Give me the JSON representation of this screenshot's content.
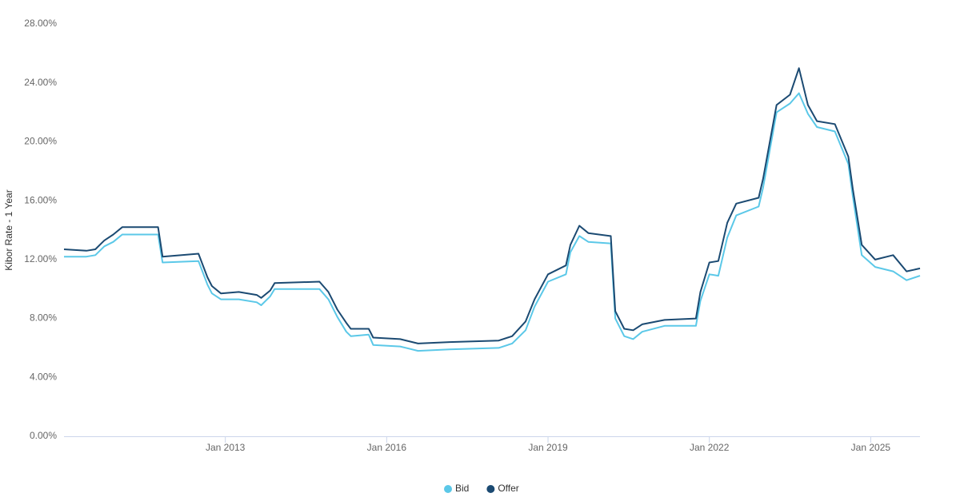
{
  "chart_data": {
    "type": "line",
    "y_label": "Kibor Rate - 1 Year",
    "x": [
      "2010-01",
      "2010-06",
      "2010-08",
      "2010-10",
      "2010-12",
      "2011-02",
      "2011-10",
      "2011-11",
      "2012-07",
      "2012-09",
      "2012-10",
      "2012-12",
      "2013-04",
      "2013-08",
      "2013-09",
      "2013-11",
      "2013-12",
      "2014-10",
      "2014-12",
      "2015-02",
      "2015-04",
      "2015-05",
      "2015-09",
      "2015-10",
      "2016-04",
      "2016-08",
      "2017-03",
      "2018-02",
      "2018-05",
      "2018-08",
      "2018-10",
      "2019-01",
      "2019-05",
      "2019-06",
      "2019-08",
      "2019-10",
      "2020-03",
      "2020-04",
      "2020-06",
      "2020-08",
      "2020-10",
      "2021-03",
      "2021-10",
      "2021-11",
      "2022-01",
      "2022-03",
      "2022-05",
      "2022-07",
      "2022-12",
      "2023-01",
      "2023-04",
      "2023-07",
      "2023-09",
      "2023-11",
      "2024-01",
      "2024-05",
      "2024-08",
      "2024-09",
      "2024-11",
      "2025-02",
      "2025-06",
      "2025-09",
      "2025-12"
    ],
    "series": [
      {
        "name": "Bid",
        "color": "#5bc8e8",
        "values": [
          12.2,
          12.2,
          12.3,
          12.9,
          13.2,
          13.7,
          13.7,
          11.8,
          11.9,
          10.3,
          9.7,
          9.3,
          9.3,
          9.1,
          8.9,
          9.5,
          10.0,
          10.0,
          9.3,
          8.1,
          7.1,
          6.8,
          6.9,
          6.2,
          6.1,
          5.8,
          5.9,
          6.0,
          6.3,
          7.2,
          8.8,
          10.5,
          11.0,
          12.5,
          13.6,
          13.2,
          13.1,
          8.0,
          6.8,
          6.6,
          7.1,
          7.5,
          7.5,
          9.2,
          11.0,
          10.9,
          13.5,
          15.0,
          15.6,
          16.9,
          22.0,
          22.6,
          23.3,
          21.9,
          21.0,
          20.7,
          18.5,
          16.3,
          12.3,
          11.5,
          11.2,
          10.6,
          10.9
        ]
      },
      {
        "name": "Offer",
        "color": "#1b4a72",
        "values": [
          12.7,
          12.6,
          12.7,
          13.3,
          13.7,
          14.2,
          14.2,
          12.2,
          12.4,
          10.8,
          10.2,
          9.7,
          9.8,
          9.6,
          9.4,
          9.9,
          10.4,
          10.5,
          9.8,
          8.6,
          7.7,
          7.3,
          7.3,
          6.7,
          6.6,
          6.3,
          6.4,
          6.5,
          6.8,
          7.8,
          9.3,
          11.0,
          11.6,
          13.0,
          14.3,
          13.8,
          13.6,
          8.5,
          7.3,
          7.2,
          7.6,
          7.9,
          8.0,
          9.8,
          11.8,
          11.9,
          14.5,
          15.8,
          16.2,
          17.5,
          22.5,
          23.2,
          25.0,
          22.5,
          21.4,
          21.2,
          19.0,
          16.8,
          13.0,
          12.0,
          12.3,
          11.2,
          11.4
        ]
      }
    ],
    "xlim": [
      "2010-01",
      "2025-12"
    ],
    "xticks": [
      {
        "value": "2013-01",
        "label": "Jan 2013"
      },
      {
        "value": "2016-01",
        "label": "Jan 2016"
      },
      {
        "value": "2019-01",
        "label": "Jan 2019"
      },
      {
        "value": "2022-01",
        "label": "Jan 2022"
      },
      {
        "value": "2025-01",
        "label": "Jan 2025"
      }
    ],
    "ylim": [
      0,
      28
    ],
    "yticks": [
      {
        "value": 0,
        "label": "0.00%"
      },
      {
        "value": 4,
        "label": "4.00%"
      },
      {
        "value": 8,
        "label": "8.00%"
      },
      {
        "value": 12,
        "label": "12.00%"
      },
      {
        "value": 16,
        "label": "16.00%"
      },
      {
        "value": 20,
        "label": "20.00%"
      },
      {
        "value": 24,
        "label": "24.00%"
      },
      {
        "value": 28,
        "label": "28.00%"
      }
    ],
    "grid": false,
    "legend": "bottom"
  }
}
